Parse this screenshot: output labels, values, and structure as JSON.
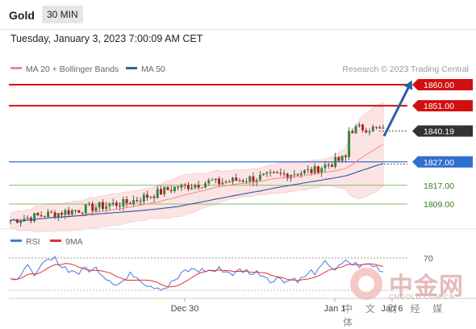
{
  "header": {
    "symbol": "Gold",
    "timeframe": "30 MIN"
  },
  "datetime": "Tuesday, January 3, 2023 7:00:09 AM CET",
  "legend": {
    "ma20_bb": "MA 20 + Bollinger Bands",
    "ma50": "MA 50",
    "copyright": "Research © 2023 Trading Central"
  },
  "rsi_legend": {
    "rsi": "RSI",
    "ma9": "9MA"
  },
  "colors": {
    "resistance": "#d01010",
    "support": "#7fbf6a",
    "pivot": "#2f6fcf",
    "current": "#333333",
    "arrow": "#2b5fa8",
    "rsi": "#4a76d8",
    "ma9": "#e03030"
  },
  "watermark": {
    "cn": "中金网",
    "en": "CNGOLD.COM.CN",
    "sub": "中 文 财 经 媒 体"
  },
  "chart_data": [
    {
      "type": "candlestick",
      "title": "Gold",
      "x_ticks": [
        "Dec 30",
        "Jan 1",
        "Jan 6"
      ],
      "ylim": [
        1795,
        1866
      ],
      "price_levels": [
        {
          "label": "1860.00",
          "value": 1860.0,
          "kind": "resistance"
        },
        {
          "label": "1851.00",
          "value": 1851.0,
          "kind": "resistance"
        },
        {
          "label": "1840.19",
          "value": 1840.19,
          "kind": "current"
        },
        {
          "label": "1827.00",
          "value": 1827.0,
          "kind": "pivot"
        },
        {
          "label": "1817.00",
          "value": 1817.0,
          "kind": "support"
        },
        {
          "label": "1809.00",
          "value": 1809.0,
          "kind": "support"
        }
      ],
      "projection": {
        "from": 1838,
        "to": 1860
      },
      "series": [
        {
          "name": "MA 20 + Bollinger Bands"
        },
        {
          "name": "MA 50"
        }
      ]
    },
    {
      "type": "line",
      "title": "RSI",
      "y_ticks": [
        70
      ],
      "series": [
        {
          "name": "RSI"
        },
        {
          "name": "9MA"
        }
      ]
    }
  ]
}
